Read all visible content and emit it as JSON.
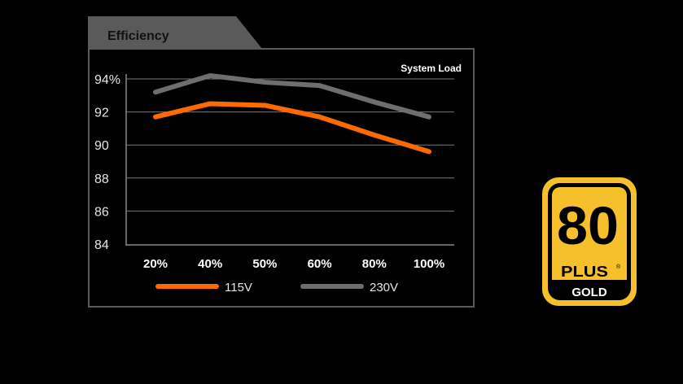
{
  "chart_data": {
    "type": "line",
    "title": "Efficiency",
    "xlabel": "System Load",
    "ylabel": "",
    "categories": [
      "20%",
      "40%",
      "50%",
      "60%",
      "80%",
      "100%"
    ],
    "yticks": [
      "94%",
      "92",
      "90",
      "88",
      "86",
      "84"
    ],
    "ytick_values": [
      94,
      92,
      90,
      88,
      86,
      84
    ],
    "ylim": [
      84,
      94
    ],
    "grid": true,
    "legend_position": "bottom",
    "series": [
      {
        "name": "115V",
        "color": "#ff6a00",
        "values": [
          91.7,
          92.5,
          92.4,
          91.7,
          90.6,
          89.6
        ]
      },
      {
        "name": "230V",
        "color": "#6e6e6e",
        "values": [
          93.2,
          94.2,
          93.8,
          93.6,
          92.6,
          91.7
        ]
      }
    ]
  },
  "badge": {
    "number": "80",
    "plus": "PLUS",
    "level": "GOLD",
    "registered": "®",
    "color": "#f5c02c"
  }
}
